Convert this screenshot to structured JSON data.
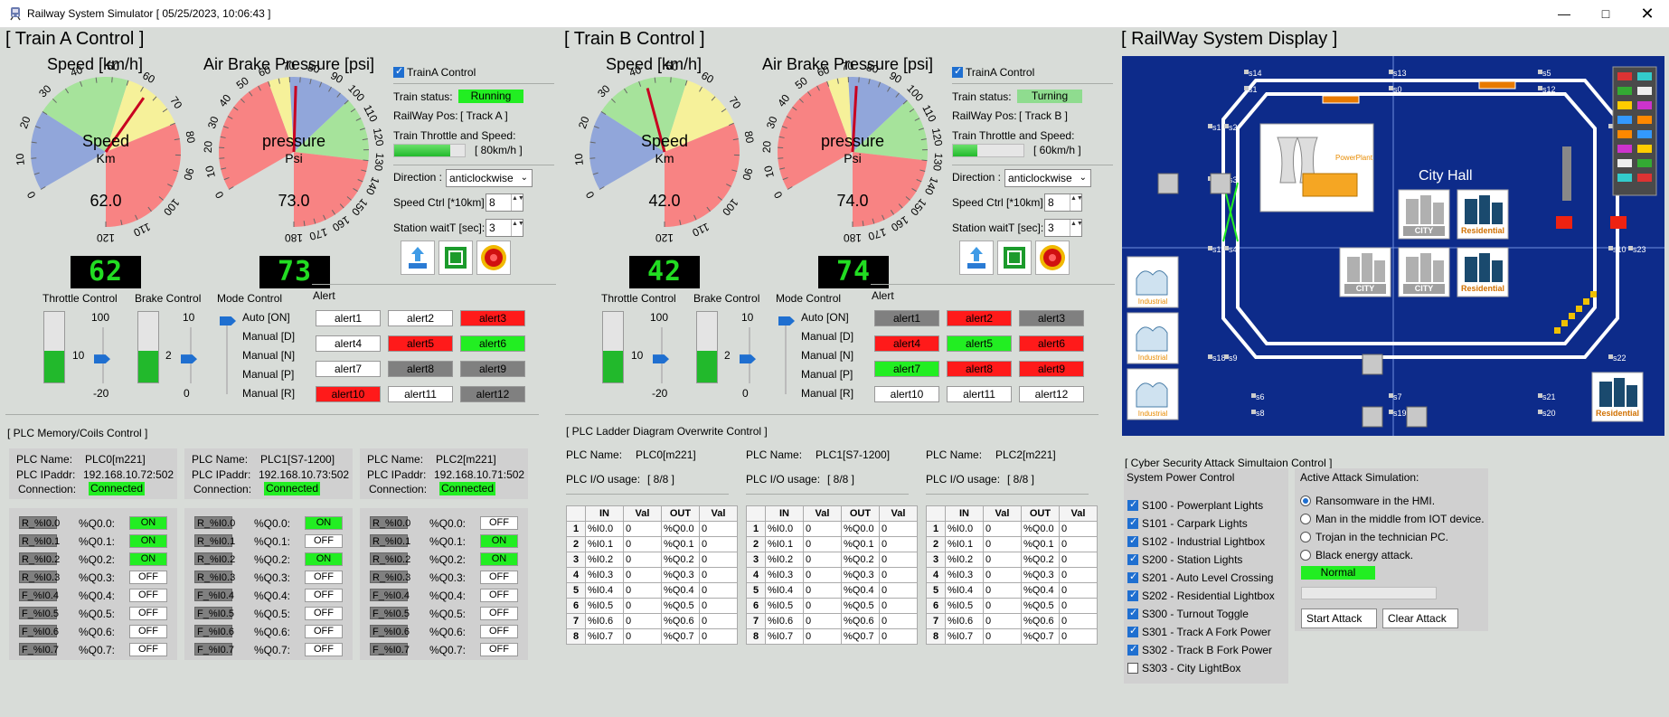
{
  "window": {
    "title": "Railway System Simulator [ 05/25/2023, 10:06:43 ]"
  },
  "trainA": {
    "section": "[ Train A Control ]",
    "speed_title": "Speed [km/h]",
    "speed_label": "Speed",
    "speed_unit": "Km",
    "speed_value": "62.0",
    "speed_digital": "62",
    "speed_ticks": [
      "0",
      "10",
      "20",
      "30",
      "40",
      "50",
      "60",
      "70",
      "80",
      "90",
      "100",
      "110",
      "120"
    ],
    "speed_needle": 62,
    "pressure_title": "Air Brake Pressure [psi]",
    "pressure_label": "pressure",
    "pressure_unit": "Psi",
    "pressure_value": "73.0",
    "pressure_digital": "73",
    "pressure_ticks": [
      "0",
      "10",
      "20",
      "30",
      "40",
      "50",
      "60",
      "70",
      "80",
      "90",
      "100",
      "110",
      "120",
      "130",
      "140",
      "150",
      "160",
      "170",
      "180"
    ],
    "pressure_needle": 73,
    "control_checkbox": "TrainA Control",
    "status_label": "Train status:",
    "status_value": "Running",
    "status_color": "#22ee22",
    "pos_label": "RailWay Pos:",
    "pos_value": "[ Track A ]",
    "throttle_speed_label": "Train Throttle and Speed:",
    "throttle_speed_value": "[ 80km/h ]",
    "throttle_fill": 0.8,
    "direction_label": "Direction :",
    "direction_value": "anticlockwise",
    "speedctrl_label": "Speed Ctrl [*10km]",
    "speedctrl_value": "8",
    "waitt_label": "Station waitT [sec]:",
    "waitt_value": "3",
    "throttle_title": "Throttle Control",
    "throttle_max": "100",
    "throttle_mid": "10",
    "throttle_min": "-20",
    "throttle_level": 0.45,
    "brake_title": "Brake Control",
    "brake_max": "10",
    "brake_mid": "2",
    "brake_min": "0",
    "brake_level": 0.45,
    "mode_title": "Mode Control",
    "modes": [
      "Auto [ON]",
      "Manual [D]",
      "Manual [N]",
      "Manual [P]",
      "Manual [R]"
    ],
    "alert_title": "Alert",
    "alerts": [
      {
        "t": "alert1",
        "c": "#ffffff"
      },
      {
        "t": "alert2",
        "c": "#ffffff"
      },
      {
        "t": "alert3",
        "c": "#ff1a1a"
      },
      {
        "t": "alert4",
        "c": "#ffffff"
      },
      {
        "t": "alert5",
        "c": "#ff1a1a"
      },
      {
        "t": "alert6",
        "c": "#22ee22"
      },
      {
        "t": "alert7",
        "c": "#ffffff"
      },
      {
        "t": "alert8",
        "c": "#808080"
      },
      {
        "t": "alert9",
        "c": "#808080"
      },
      {
        "t": "alert10",
        "c": "#ff1a1a"
      },
      {
        "t": "alert11",
        "c": "#ffffff"
      },
      {
        "t": "alert12",
        "c": "#808080"
      }
    ]
  },
  "trainB": {
    "section": "[ Train B Control ]",
    "speed_title": "Speed [km/h]",
    "speed_label": "Speed",
    "speed_unit": "Km",
    "speed_value": "42.0",
    "speed_digital": "42",
    "speed_ticks": [
      "0",
      "10",
      "20",
      "30",
      "40",
      "50",
      "60",
      "70",
      "80",
      "90",
      "100",
      "110",
      "120"
    ],
    "speed_needle": 42,
    "pressure_title": "Air Brake Pressure [psi]",
    "pressure_label": "pressure",
    "pressure_unit": "Psi",
    "pressure_value": "74.0",
    "pressure_digital": "74",
    "pressure_ticks": [
      "0",
      "10",
      "20",
      "30",
      "40",
      "50",
      "60",
      "70",
      "80",
      "90",
      "100",
      "110",
      "120",
      "130",
      "140",
      "150",
      "160",
      "170",
      "180"
    ],
    "pressure_needle": 74,
    "control_checkbox": "TrainA Control",
    "status_label": "Train status:",
    "status_value": "Turning",
    "status_color": "#8fdc8f",
    "pos_label": "RailWay Pos:",
    "pos_value": "[ Track B ]",
    "throttle_speed_label": "Train Throttle and Speed:",
    "throttle_speed_value": "[ 60km/h ]",
    "throttle_fill": 0.35,
    "direction_label": "Direction :",
    "direction_value": "anticlockwise",
    "speedctrl_label": "Speed Ctrl [*10km]",
    "speedctrl_value": "8",
    "waitt_label": "Station waitT [sec]:",
    "waitt_value": "3",
    "throttle_title": "Throttle Control",
    "throttle_max": "100",
    "throttle_mid": "10",
    "throttle_min": "-20",
    "throttle_level": 0.45,
    "brake_title": "Brake Control",
    "brake_max": "10",
    "brake_mid": "2",
    "brake_min": "0",
    "brake_level": 0.45,
    "mode_title": "Mode Control",
    "modes": [
      "Auto [ON]",
      "Manual [D]",
      "Manual [N]",
      "Manual [P]",
      "Manual [R]"
    ],
    "alert_title": "Alert",
    "alerts": [
      {
        "t": "alert1",
        "c": "#808080"
      },
      {
        "t": "alert2",
        "c": "#ff1a1a"
      },
      {
        "t": "alert3",
        "c": "#808080"
      },
      {
        "t": "alert4",
        "c": "#ff1a1a"
      },
      {
        "t": "alert5",
        "c": "#22ee22"
      },
      {
        "t": "alert6",
        "c": "#ff1a1a"
      },
      {
        "t": "alert7",
        "c": "#22ee22"
      },
      {
        "t": "alert8",
        "c": "#ff1a1a"
      },
      {
        "t": "alert9",
        "c": "#ff1a1a"
      },
      {
        "t": "alert10",
        "c": "#ffffff"
      },
      {
        "t": "alert11",
        "c": "#ffffff"
      },
      {
        "t": "alert12",
        "c": "#ffffff"
      }
    ]
  },
  "plc_memory": {
    "section": "[ PLC Memory/Coils Control ]",
    "name_label": "PLC Name:",
    "ip_label": "PLC IPaddr:",
    "conn_label": "Connection:",
    "plcs": [
      {
        "name": "PLC0[m221]",
        "ip": "192.168.10.72:502",
        "conn": "Connected",
        "rows": [
          {
            "r": "R_%I0.0",
            "q": "%Q0.0:",
            "v": "ON"
          },
          {
            "r": "R_%I0.1",
            "q": "%Q0.1:",
            "v": "ON"
          },
          {
            "r": "R_%I0.2",
            "q": "%Q0.2:",
            "v": "ON"
          },
          {
            "r": "R_%I0.3",
            "q": "%Q0.3:",
            "v": "OFF"
          },
          {
            "r": "F_%I0.4",
            "q": "%Q0.4:",
            "v": "OFF"
          },
          {
            "r": "F_%I0.5",
            "q": "%Q0.5:",
            "v": "OFF"
          },
          {
            "r": "F_%I0.6",
            "q": "%Q0.6:",
            "v": "OFF"
          },
          {
            "r": "F_%I0.7",
            "q": "%Q0.7:",
            "v": "OFF"
          }
        ]
      },
      {
        "name": "PLC1[S7-1200]",
        "ip": "192.168.10.73:502",
        "conn": "Connected",
        "rows": [
          {
            "r": "R_%I0.0",
            "q": "%Q0.0:",
            "v": "ON"
          },
          {
            "r": "R_%I0.1",
            "q": "%Q0.1:",
            "v": "OFF"
          },
          {
            "r": "R_%I0.2",
            "q": "%Q0.2:",
            "v": "ON"
          },
          {
            "r": "R_%I0.3",
            "q": "%Q0.3:",
            "v": "OFF"
          },
          {
            "r": "F_%I0.4",
            "q": "%Q0.4:",
            "v": "OFF"
          },
          {
            "r": "F_%I0.5",
            "q": "%Q0.5:",
            "v": "OFF"
          },
          {
            "r": "F_%I0.6",
            "q": "%Q0.6:",
            "v": "OFF"
          },
          {
            "r": "F_%I0.7",
            "q": "%Q0.7:",
            "v": "OFF"
          }
        ]
      },
      {
        "name": "PLC2[m221]",
        "ip": "192.168.10.71:502",
        "conn": "Connected",
        "rows": [
          {
            "r": "R_%I0.0",
            "q": "%Q0.0:",
            "v": "OFF"
          },
          {
            "r": "R_%I0.1",
            "q": "%Q0.1:",
            "v": "ON"
          },
          {
            "r": "R_%I0.2",
            "q": "%Q0.2:",
            "v": "ON"
          },
          {
            "r": "R_%I0.3",
            "q": "%Q0.3:",
            "v": "OFF"
          },
          {
            "r": "F_%I0.4",
            "q": "%Q0.4:",
            "v": "OFF"
          },
          {
            "r": "F_%I0.5",
            "q": "%Q0.5:",
            "v": "OFF"
          },
          {
            "r": "F_%I0.6",
            "q": "%Q0.6:",
            "v": "OFF"
          },
          {
            "r": "F_%I0.7",
            "q": "%Q0.7:",
            "v": "OFF"
          }
        ]
      }
    ]
  },
  "plc_ladder": {
    "section": "[ PLC Ladder Diagram Overwrite Control ]",
    "name_label": "PLC Name:",
    "usage_label": "PLC I/O usage:",
    "headers": [
      "",
      "IN",
      "Val",
      "OUT",
      "Val"
    ],
    "plcs": [
      {
        "name": "PLC0[m221]",
        "usage": "[ 8/8 ]"
      },
      {
        "name": "PLC1[S7-1200]",
        "usage": "[ 8/8 ]"
      },
      {
        "name": "PLC2[m221]",
        "usage": "[ 8/8 ]"
      }
    ],
    "rows": [
      [
        "1",
        "%I0.0",
        "0",
        "%Q0.0",
        "0"
      ],
      [
        "2",
        "%I0.1",
        "0",
        "%Q0.1",
        "0"
      ],
      [
        "3",
        "%I0.2",
        "0",
        "%Q0.2",
        "0"
      ],
      [
        "4",
        "%I0.3",
        "0",
        "%Q0.3",
        "0"
      ],
      [
        "5",
        "%I0.4",
        "0",
        "%Q0.4",
        "0"
      ],
      [
        "6",
        "%I0.5",
        "0",
        "%Q0.5",
        "0"
      ],
      [
        "7",
        "%I0.6",
        "0",
        "%Q0.6",
        "0"
      ],
      [
        "8",
        "%I0.7",
        "0",
        "%Q0.7",
        "0"
      ]
    ]
  },
  "display": {
    "section": "[  RailWay System Display ]",
    "city_hall": "City Hall",
    "sensors": [
      "s14",
      "s13",
      "s5",
      "s1",
      "s0",
      "s12",
      "s15",
      "s2",
      "s11",
      "s24",
      "s16",
      "s3",
      "s17",
      "s4",
      "s10",
      "s23",
      "s18",
      "s9",
      "s22",
      "s6",
      "s7",
      "s8",
      "s19",
      "s20",
      "s21"
    ],
    "powerplant": "PowerPlant",
    "city": "CITY",
    "residential": "Residential",
    "industrial": "Industrial"
  },
  "cyber": {
    "section": "[ Cyber Security Attack Simultaion Control ]",
    "power_title": "System Power Control",
    "power": [
      {
        "t": "S100 - Powerplant Lights",
        "on": true
      },
      {
        "t": "S101 - Carpark Lights",
        "on": true
      },
      {
        "t": "S102 - Industrial Lightbox",
        "on": true
      },
      {
        "t": "S200 - Station Lights",
        "on": true
      },
      {
        "t": "S201 - Auto Level Crossing",
        "on": true
      },
      {
        "t": "S202 - Residential Lightbox",
        "on": true
      },
      {
        "t": "S300 - Turnout Toggle",
        "on": true
      },
      {
        "t": "S301 - Track A Fork Power",
        "on": true
      },
      {
        "t": "S302 - Track B Fork Power",
        "on": true
      },
      {
        "t": "S303 - City LightBox",
        "on": false
      }
    ],
    "attack_title": "Active Attack Simulation:",
    "attacks": [
      {
        "t": "Ransomware in the HMI.",
        "on": true
      },
      {
        "t": "Man in the middle from IOT device.",
        "on": false
      },
      {
        "t": "Trojan in the technician PC.",
        "on": false
      },
      {
        "t": "Black energy attack.",
        "on": false
      }
    ],
    "status": "Normal",
    "status_color": "#22ee22",
    "start": "Start Attack",
    "clear": "Clear Attack"
  },
  "colors": {
    "map_bg": "#0d2b8a",
    "green": "#22ee22",
    "red": "#ff1a1a",
    "gray": "#808080"
  }
}
